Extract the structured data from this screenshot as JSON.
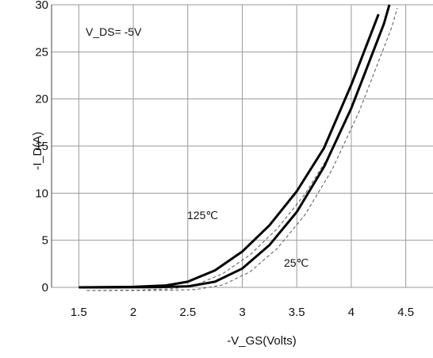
{
  "chart_data": {
    "type": "line",
    "title": "",
    "xlabel": "-V_GS(Volts)",
    "ylabel": "-I_D(A)",
    "xlim": [
      1.25,
      4.75
    ],
    "ylim": [
      0,
      30
    ],
    "xticks": [
      "1.5",
      "2",
      "2.5",
      "3",
      "3.5",
      "4",
      "4.5"
    ],
    "yticks": [
      "0",
      "5",
      "10",
      "15",
      "20",
      "25",
      "30"
    ],
    "grid": true,
    "annotation": "V_DS= -5V",
    "series": [
      {
        "name": "125℃",
        "points": [
          [
            1.5,
            0
          ],
          [
            2.0,
            0.05
          ],
          [
            2.3,
            0.2
          ],
          [
            2.5,
            0.6
          ],
          [
            2.75,
            1.8
          ],
          [
            3.0,
            3.8
          ],
          [
            3.25,
            6.6
          ],
          [
            3.5,
            10.2
          ],
          [
            3.75,
            14.8
          ],
          [
            4.0,
            21.5
          ],
          [
            4.1,
            24.5
          ],
          [
            4.25,
            29.0
          ]
        ]
      },
      {
        "name": "25℃",
        "points": [
          [
            1.5,
            0
          ],
          [
            2.2,
            0.02
          ],
          [
            2.5,
            0.1
          ],
          [
            2.75,
            0.6
          ],
          [
            3.0,
            2.0
          ],
          [
            3.25,
            4.5
          ],
          [
            3.5,
            8.0
          ],
          [
            3.75,
            12.8
          ],
          [
            4.0,
            19.0
          ],
          [
            4.1,
            22.0
          ],
          [
            4.3,
            28.0
          ],
          [
            4.35,
            30.0
          ]
        ]
      }
    ]
  }
}
